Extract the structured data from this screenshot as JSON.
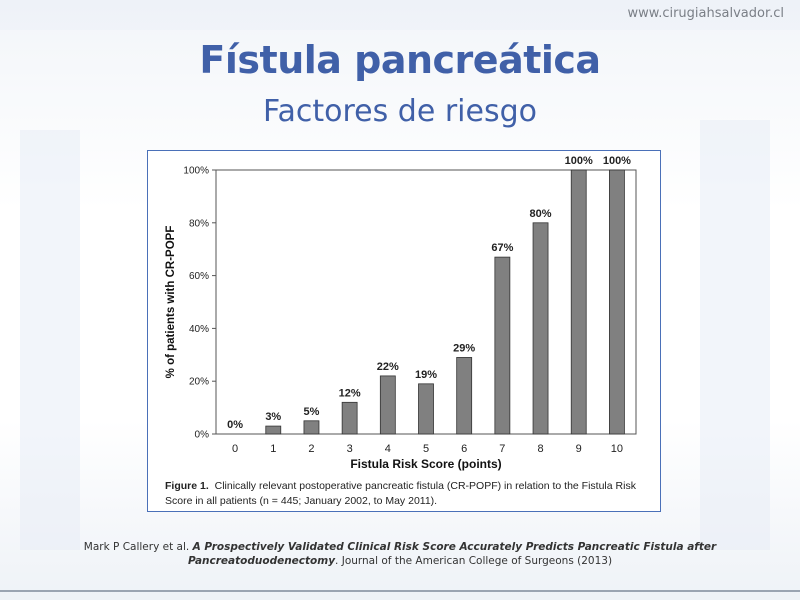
{
  "header": {
    "site": "www.cirugiahsalvador.cl",
    "title": "Fístula pancreática",
    "subtitle": "Factores de riesgo"
  },
  "chart_data": {
    "type": "bar",
    "categories": [
      "0",
      "1",
      "2",
      "3",
      "4",
      "5",
      "6",
      "7",
      "8",
      "9",
      "10"
    ],
    "values": [
      0,
      3,
      5,
      12,
      22,
      19,
      29,
      67,
      80,
      100,
      100
    ],
    "data_labels": [
      "0%",
      "3%",
      "5%",
      "12%",
      "22%",
      "19%",
      "29%",
      "67%",
      "80%",
      "100%",
      "100%"
    ],
    "xlabel": "Fistula Risk Score  (points)",
    "ylabel": "% of patients with CR-POPF",
    "ylim": [
      0,
      100
    ],
    "yticks": [
      "0%",
      "20%",
      "40%",
      "60%",
      "80%",
      "100%"
    ],
    "grid": false,
    "bar_color": "#808080"
  },
  "caption": {
    "label": "Figure 1.",
    "text": "Clinically relevant postoperative pancreatic fistula (CR-POPF) in relation to the Fistula Risk Score in all patients (n = 445; January 2002, to May 2011)."
  },
  "reference": {
    "authors": "Mark P Callery et al.",
    "article": "A Prospectively Validated Clinical Risk Score Accurately Predicts Pancreatic Fistula after Pancreatoduodenectomy",
    "journal": ". Journal of the American College of Surgeons (2013)"
  }
}
